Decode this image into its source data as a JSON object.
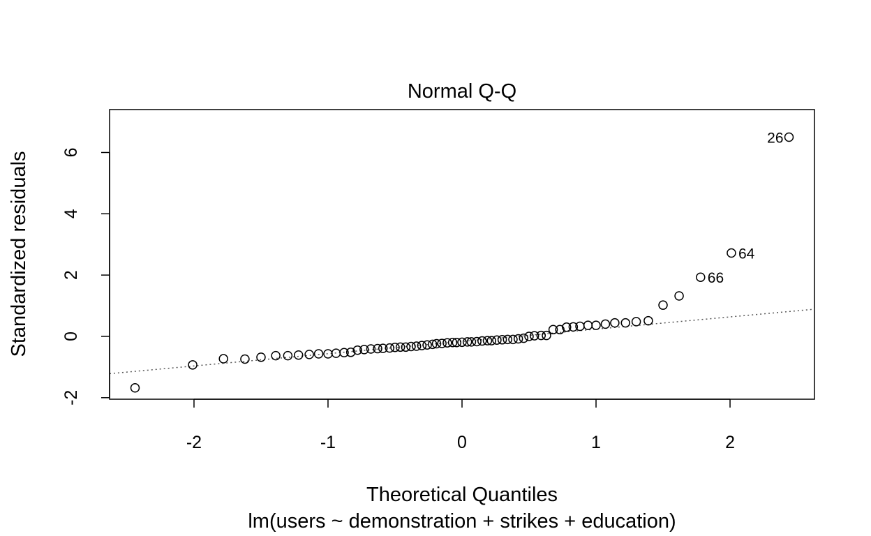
{
  "chart_data": {
    "type": "scatter",
    "title": "Normal Q-Q",
    "xlabel": "Theoretical Quantiles",
    "subtitle": "lm(users ~ demonstration + strikes + education)",
    "ylabel": "Standardized residuals",
    "xlim": [
      -2.63,
      2.63
    ],
    "ylim": [
      -2.05,
      7.4
    ],
    "xticks": [
      "-2",
      "-1",
      "0",
      "1",
      "2"
    ],
    "yticks": [
      "-2",
      "0",
      "2",
      "4",
      "6"
    ],
    "grid": false,
    "legend": "none",
    "reference_line": {
      "style": "dotted",
      "slope": 0.4,
      "intercept": -0.165
    },
    "points": [
      [
        -2.44,
        -1.68
      ],
      [
        -2.01,
        -0.93
      ],
      [
        -1.78,
        -0.73
      ],
      [
        -1.62,
        -0.74
      ],
      [
        -1.5,
        -0.68
      ],
      [
        -1.39,
        -0.63
      ],
      [
        -1.3,
        -0.63
      ],
      [
        -1.22,
        -0.61
      ],
      [
        -1.14,
        -0.59
      ],
      [
        -1.07,
        -0.57
      ],
      [
        -1.0,
        -0.57
      ],
      [
        -0.94,
        -0.55
      ],
      [
        -0.88,
        -0.53
      ],
      [
        -0.83,
        -0.52
      ],
      [
        -0.78,
        -0.45
      ],
      [
        -0.73,
        -0.43
      ],
      [
        -0.68,
        -0.41
      ],
      [
        -0.63,
        -0.4
      ],
      [
        -0.59,
        -0.39
      ],
      [
        -0.54,
        -0.38
      ],
      [
        -0.5,
        -0.36
      ],
      [
        -0.46,
        -0.35
      ],
      [
        -0.42,
        -0.35
      ],
      [
        -0.38,
        -0.33
      ],
      [
        -0.34,
        -0.32
      ],
      [
        -0.3,
        -0.3
      ],
      [
        -0.26,
        -0.28
      ],
      [
        -0.22,
        -0.26
      ],
      [
        -0.19,
        -0.24
      ],
      [
        -0.15,
        -0.23
      ],
      [
        -0.11,
        -0.21
      ],
      [
        -0.07,
        -0.2
      ],
      [
        -0.04,
        -0.2
      ],
      [
        0.0,
        -0.19
      ],
      [
        0.04,
        -0.18
      ],
      [
        0.07,
        -0.18
      ],
      [
        0.11,
        -0.17
      ],
      [
        0.15,
        -0.15
      ],
      [
        0.19,
        -0.14
      ],
      [
        0.22,
        -0.14
      ],
      [
        0.26,
        -0.12
      ],
      [
        0.3,
        -0.11
      ],
      [
        0.34,
        -0.1
      ],
      [
        0.38,
        -0.1
      ],
      [
        0.42,
        -0.08
      ],
      [
        0.46,
        -0.06
      ],
      [
        0.5,
        0.0
      ],
      [
        0.54,
        0.02
      ],
      [
        0.59,
        0.03
      ],
      [
        0.63,
        0.03
      ],
      [
        0.68,
        0.22
      ],
      [
        0.73,
        0.22
      ],
      [
        0.78,
        0.3
      ],
      [
        0.83,
        0.31
      ],
      [
        0.88,
        0.33
      ],
      [
        0.94,
        0.36
      ],
      [
        1.0,
        0.36
      ],
      [
        1.07,
        0.4
      ],
      [
        1.14,
        0.44
      ],
      [
        1.22,
        0.44
      ],
      [
        1.3,
        0.48
      ],
      [
        1.39,
        0.51
      ],
      [
        1.5,
        1.02
      ],
      [
        1.62,
        1.32
      ],
      [
        1.78,
        1.93
      ],
      [
        2.01,
        2.72
      ],
      [
        2.44,
        6.5
      ]
    ],
    "labeled_points": [
      {
        "label": "26",
        "x": 2.44,
        "y": 6.5
      },
      {
        "label": "64",
        "x": 2.01,
        "y": 2.72
      },
      {
        "label": "66",
        "x": 1.78,
        "y": 1.93
      }
    ]
  }
}
